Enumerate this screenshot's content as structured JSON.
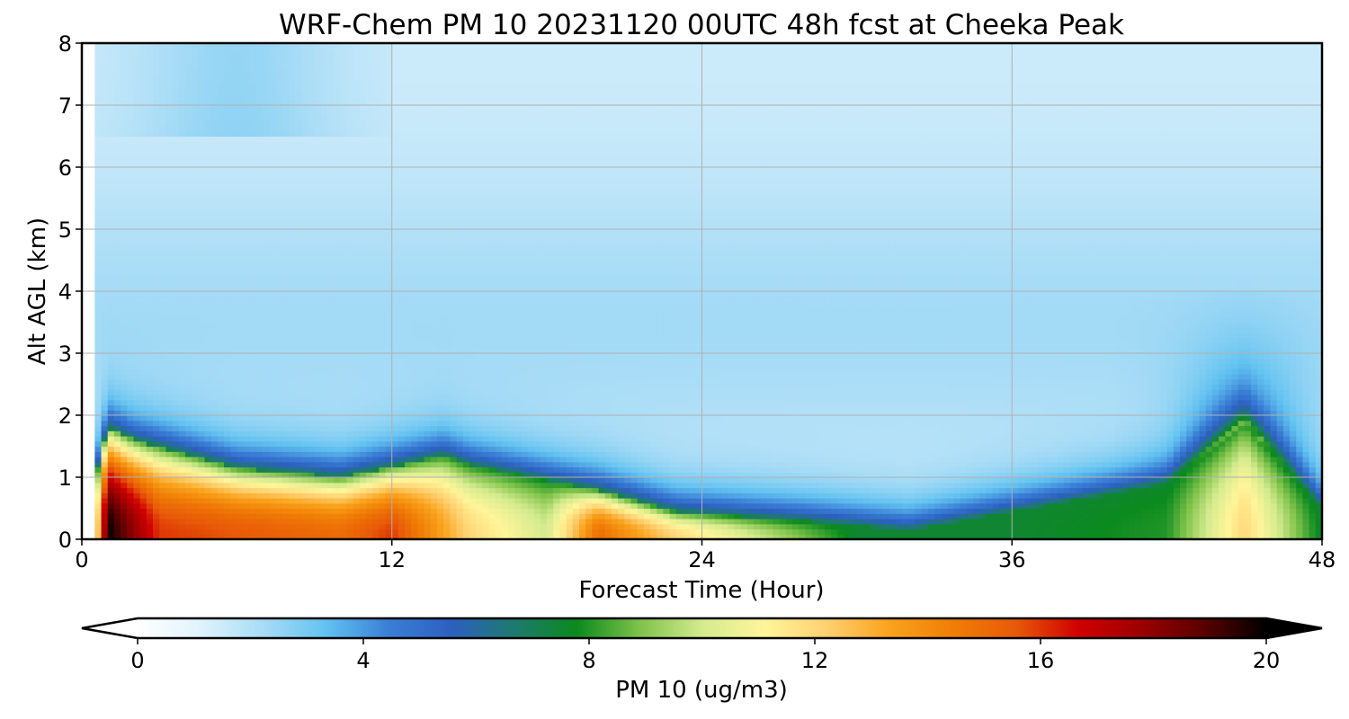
{
  "chart_data": {
    "type": "heatmap",
    "title": "WRF-Chem PM 10  20231120 00UTC 48h fcst at Cheeka Peak",
    "xlabel": "Forecast Time (Hour)",
    "ylabel": "Alt AGL (km)",
    "xlim": [
      0,
      48
    ],
    "ylim": [
      0,
      8
    ],
    "xticks": [
      0,
      12,
      24,
      36,
      48
    ],
    "yticks": [
      0,
      1,
      2,
      3,
      4,
      5,
      6,
      7,
      8
    ],
    "grid": true,
    "colorbar": {
      "label": "PM 10  (ug/m3)",
      "range": [
        0,
        20
      ],
      "ticks": [
        0,
        4,
        8,
        12,
        16,
        20
      ],
      "extend": "both",
      "colors": [
        "#ffffff",
        "#e0f3fc",
        "#a8dcf6",
        "#62c2f0",
        "#3a7fd6",
        "#2d5fc0",
        "#1e7a6e",
        "#0b8a1e",
        "#7ec24a",
        "#d4eb8e",
        "#fff59a",
        "#ffd070",
        "#f9a21c",
        "#f07e06",
        "#e85a08",
        "#d00000",
        "#9c0000",
        "#5a0000",
        "#000000"
      ]
    },
    "field": {
      "note_dense_surface_layer_peak_hour": 1,
      "profile_top_km_by_hour": [
        [
          0,
          0.1
        ],
        [
          1,
          1.8
        ],
        [
          2,
          1.6
        ],
        [
          6,
          1.15
        ],
        [
          10,
          1.0
        ],
        [
          14,
          1.35
        ],
        [
          15,
          1.2
        ],
        [
          18,
          0.95
        ],
        [
          20,
          0.8
        ],
        [
          23,
          0.45
        ],
        [
          28,
          0.3
        ],
        [
          32,
          0.15
        ],
        [
          42,
          0.9
        ],
        [
          45,
          1.9
        ],
        [
          48,
          0.5
        ]
      ],
      "surface_layer_peak_values": [
        [
          0,
          0
        ],
        [
          1,
          20
        ],
        [
          3,
          16
        ],
        [
          10,
          15
        ],
        [
          12,
          16
        ],
        [
          15,
          12
        ],
        [
          18,
          10
        ],
        [
          20,
          15
        ],
        [
          23,
          12
        ],
        [
          26,
          10
        ],
        [
          30,
          7.5
        ],
        [
          36,
          7.5
        ],
        [
          42,
          8
        ],
        [
          45,
          12
        ],
        [
          48,
          7.5
        ]
      ],
      "background_aloft_value": 1.5
    }
  }
}
